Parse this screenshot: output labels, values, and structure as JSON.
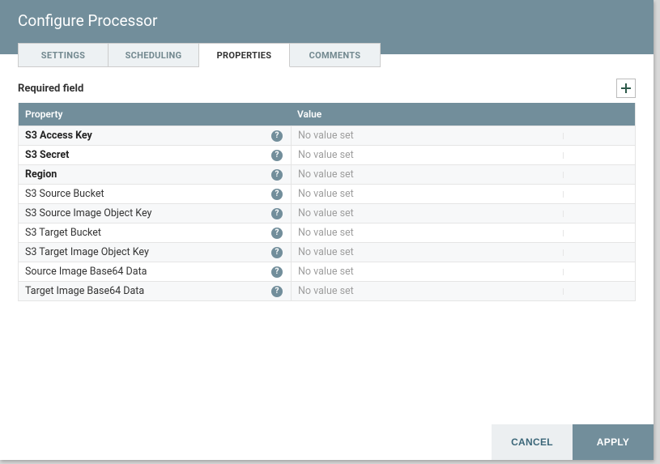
{
  "colors": {
    "accent": "#728e9b",
    "text_muted": "#9e9e9e"
  },
  "header": {
    "title": "Configure Processor"
  },
  "tabs": [
    {
      "id": "settings",
      "label": "SETTINGS",
      "active": false
    },
    {
      "id": "scheduling",
      "label": "SCHEDULING",
      "active": false
    },
    {
      "id": "properties",
      "label": "PROPERTIES",
      "active": true
    },
    {
      "id": "comments",
      "label": "COMMENTS",
      "active": false
    }
  ],
  "properties_panel": {
    "required_label": "Required field",
    "column_headers": {
      "property": "Property",
      "value": "Value"
    },
    "rows": [
      {
        "name": "S3 Access Key",
        "required": true,
        "value": "No value set"
      },
      {
        "name": "S3 Secret",
        "required": true,
        "value": "No value set"
      },
      {
        "name": "Region",
        "required": true,
        "value": "No value set"
      },
      {
        "name": "S3 Source Bucket",
        "required": false,
        "value": "No value set"
      },
      {
        "name": "S3 Source Image Object Key",
        "required": false,
        "value": "No value set"
      },
      {
        "name": "S3 Target Bucket",
        "required": false,
        "value": "No value set"
      },
      {
        "name": "S3 Target Image Object Key",
        "required": false,
        "value": "No value set"
      },
      {
        "name": "Source Image Base64 Data",
        "required": false,
        "value": "No value set"
      },
      {
        "name": "Target Image Base64 Data",
        "required": false,
        "value": "No value set"
      }
    ]
  },
  "footer": {
    "cancel_label": "CANCEL",
    "apply_label": "APPLY"
  }
}
